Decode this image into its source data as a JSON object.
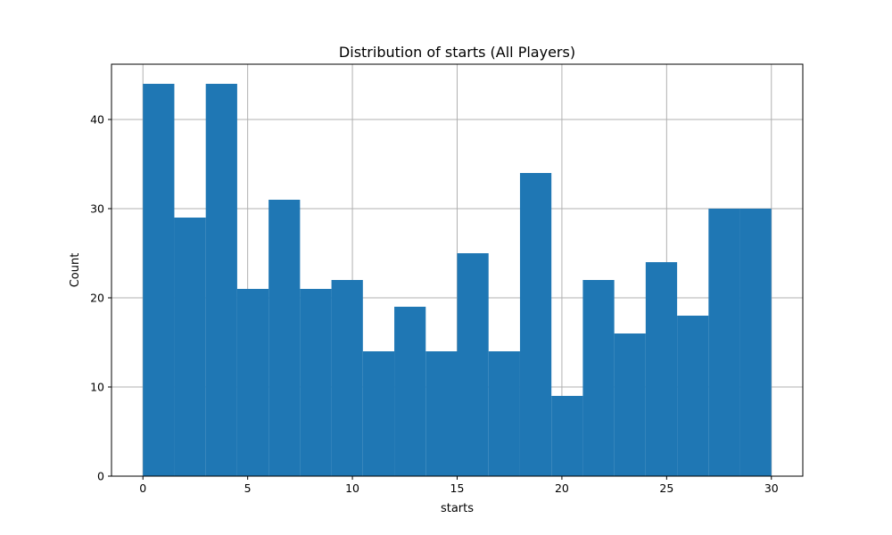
{
  "chart_data": {
    "type": "bar",
    "title": "Distribution of starts (All Players)",
    "xlabel": "starts",
    "ylabel": "Count",
    "bin_edges": [
      0,
      1.5,
      3,
      4.5,
      6,
      7.5,
      9,
      10.5,
      12,
      13.5,
      15,
      16.5,
      18,
      19.5,
      21,
      22.5,
      24,
      25.5,
      27,
      28.5,
      30
    ],
    "values": [
      44,
      29,
      44,
      21,
      31,
      21,
      22,
      14,
      19,
      14,
      25,
      14,
      34,
      9,
      22,
      16,
      24,
      18,
      30,
      30
    ],
    "xlim": [
      -1.5,
      31.5
    ],
    "ylim": [
      0,
      46.2
    ],
    "xticks": [
      0,
      5,
      10,
      15,
      20,
      25,
      30
    ],
    "yticks": [
      0,
      10,
      20,
      30,
      40
    ],
    "bar_color": "#1f77b4",
    "grid": true
  }
}
